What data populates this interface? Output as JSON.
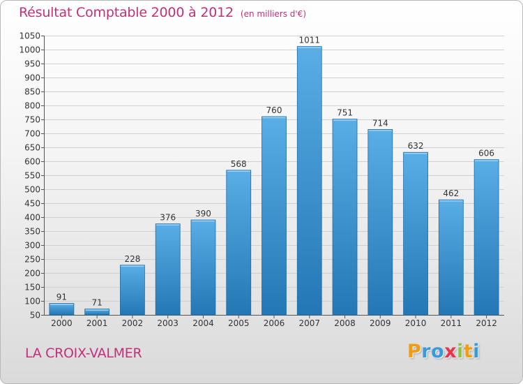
{
  "title": {
    "main": "Résultat Comptable 2000 à 2012",
    "sub": "(en milliers d'€)"
  },
  "city": "LA CROIX-VALMER",
  "logo": {
    "text": "Proxiti",
    "letters": [
      {
        "char": "P",
        "color": "#f39c12"
      },
      {
        "char": "r",
        "color": "#3a9ad9"
      },
      {
        "char": "o",
        "color": "#3a9ad9"
      },
      {
        "char": "x",
        "color": "#e8344e"
      },
      {
        "char": "i",
        "color": "#8cc63f"
      },
      {
        "char": "t",
        "color": "#f39c12"
      },
      {
        "char": "i",
        "color": "#3a9ad9"
      }
    ]
  },
  "colors": {
    "title": "#c2307a",
    "bar_light": "#5aaee6",
    "bar_dark": "#2377b4",
    "grid": "#d0d0d0"
  },
  "chart_data": {
    "type": "bar",
    "title": "Résultat Comptable 2000 à 2012",
    "subtitle": "(en milliers d'€)",
    "xlabel": "",
    "ylabel": "",
    "categories": [
      "2000",
      "2001",
      "2002",
      "2003",
      "2004",
      "2005",
      "2006",
      "2007",
      "2008",
      "2009",
      "2010",
      "2011",
      "2012"
    ],
    "values": [
      91,
      71,
      228,
      376,
      390,
      568,
      760,
      1011,
      751,
      714,
      632,
      462,
      606
    ],
    "ylim": [
      50,
      1050
    ],
    "ytick_step": 50,
    "grid": true,
    "legend": "none"
  }
}
